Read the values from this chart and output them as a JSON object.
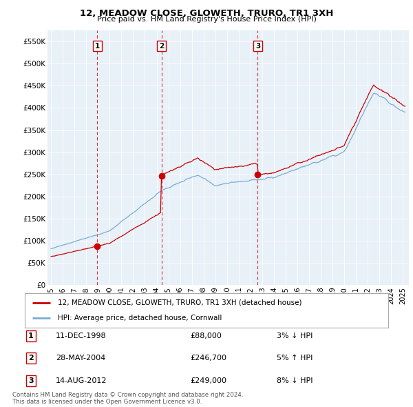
{
  "title": "12, MEADOW CLOSE, GLOWETH, TRURO, TR1 3XH",
  "subtitle": "Price paid vs. HM Land Registry's House Price Index (HPI)",
  "house_color": "#cc0000",
  "hpi_color": "#7aadd4",
  "sale_marker_color": "#cc0000",
  "vline_color": "#cc0000",
  "transactions": [
    {
      "num": 1,
      "date_str": "11-DEC-1998",
      "date_x": 1998.94,
      "price": 88000,
      "hpi_rel": "3% ↓ HPI"
    },
    {
      "num": 2,
      "date_str": "28-MAY-2004",
      "date_x": 2004.41,
      "price": 246700,
      "hpi_rel": "5% ↑ HPI"
    },
    {
      "num": 3,
      "date_str": "14-AUG-2012",
      "date_x": 2012.62,
      "price": 249000,
      "hpi_rel": "8% ↓ HPI"
    }
  ],
  "ylim": [
    0,
    575000
  ],
  "yticks": [
    0,
    50000,
    100000,
    150000,
    200000,
    250000,
    300000,
    350000,
    400000,
    450000,
    500000,
    550000
  ],
  "ytick_labels": [
    "£0",
    "£50K",
    "£100K",
    "£150K",
    "£200K",
    "£250K",
    "£300K",
    "£350K",
    "£400K",
    "£450K",
    "£500K",
    "£550K"
  ],
  "xlim_start": 1994.7,
  "xlim_end": 2025.5,
  "xticks": [
    1995,
    1996,
    1997,
    1998,
    1999,
    2000,
    2001,
    2002,
    2003,
    2004,
    2005,
    2006,
    2007,
    2008,
    2009,
    2010,
    2011,
    2012,
    2013,
    2014,
    2015,
    2016,
    2017,
    2018,
    2019,
    2020,
    2021,
    2022,
    2023,
    2024,
    2025
  ],
  "legend_house": "12, MEADOW CLOSE, GLOWETH, TRURO, TR1 3XH (detached house)",
  "legend_hpi": "HPI: Average price, detached house, Cornwall",
  "footnote": "Contains HM Land Registry data © Crown copyright and database right 2024.\nThis data is licensed under the Open Government Licence v3.0.",
  "background_color": "#ffffff",
  "plot_bg_color": "#e8f0f8",
  "grid_color": "#ffffff",
  "table_rows": [
    [
      1,
      "11-DEC-1998",
      "£88,000",
      "3% ↓ HPI"
    ],
    [
      2,
      "28-MAY-2004",
      "£246,700",
      "5% ↑ HPI"
    ],
    [
      3,
      "14-AUG-2012",
      "£249,000",
      "8% ↓ HPI"
    ]
  ]
}
